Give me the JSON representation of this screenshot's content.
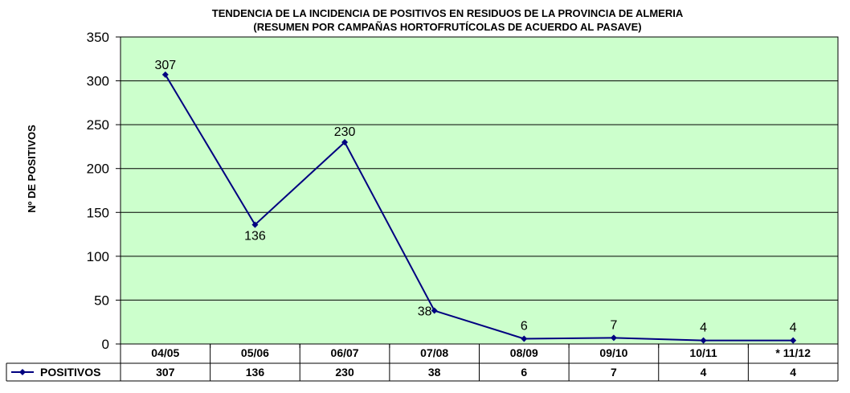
{
  "chart_data": {
    "type": "line",
    "title": "TENDENCIA DE LA INCIDENCIA DE POSITIVOS EN RESIDUOS DE LA PROVINCIA DE ALMERIA",
    "subtitle": "(RESUMEN POR CAMPAÑAS  HORTOFRUTÍCOLAS DE ACUERDO AL PASAVE)",
    "xlabel": "",
    "ylabel": "Nº DE POSITIVOS",
    "ylim": [
      0,
      350
    ],
    "yticks": [
      "0",
      "50",
      "100",
      "150",
      "200",
      "250",
      "300",
      "350"
    ],
    "categories": [
      "04/05",
      "05/06",
      "06/07",
      "07/08",
      "08/09",
      "09/10",
      "10/11",
      "* 11/12"
    ],
    "series": [
      {
        "name": "POSITIVOS",
        "values": [
          307,
          136,
          230,
          38,
          6,
          7,
          4,
          4
        ]
      }
    ],
    "data_labels": [
      "307",
      "136",
      "230",
      "38",
      "6",
      "7",
      "4",
      "4"
    ],
    "table_values": [
      "307",
      "136",
      "230",
      "38",
      "6",
      "7",
      "4",
      "4"
    ],
    "legend_position": "data-table-left",
    "grid": true,
    "colors": {
      "plot_bg": "#ccffcc",
      "line": "#000080",
      "grid": "#000000"
    }
  }
}
